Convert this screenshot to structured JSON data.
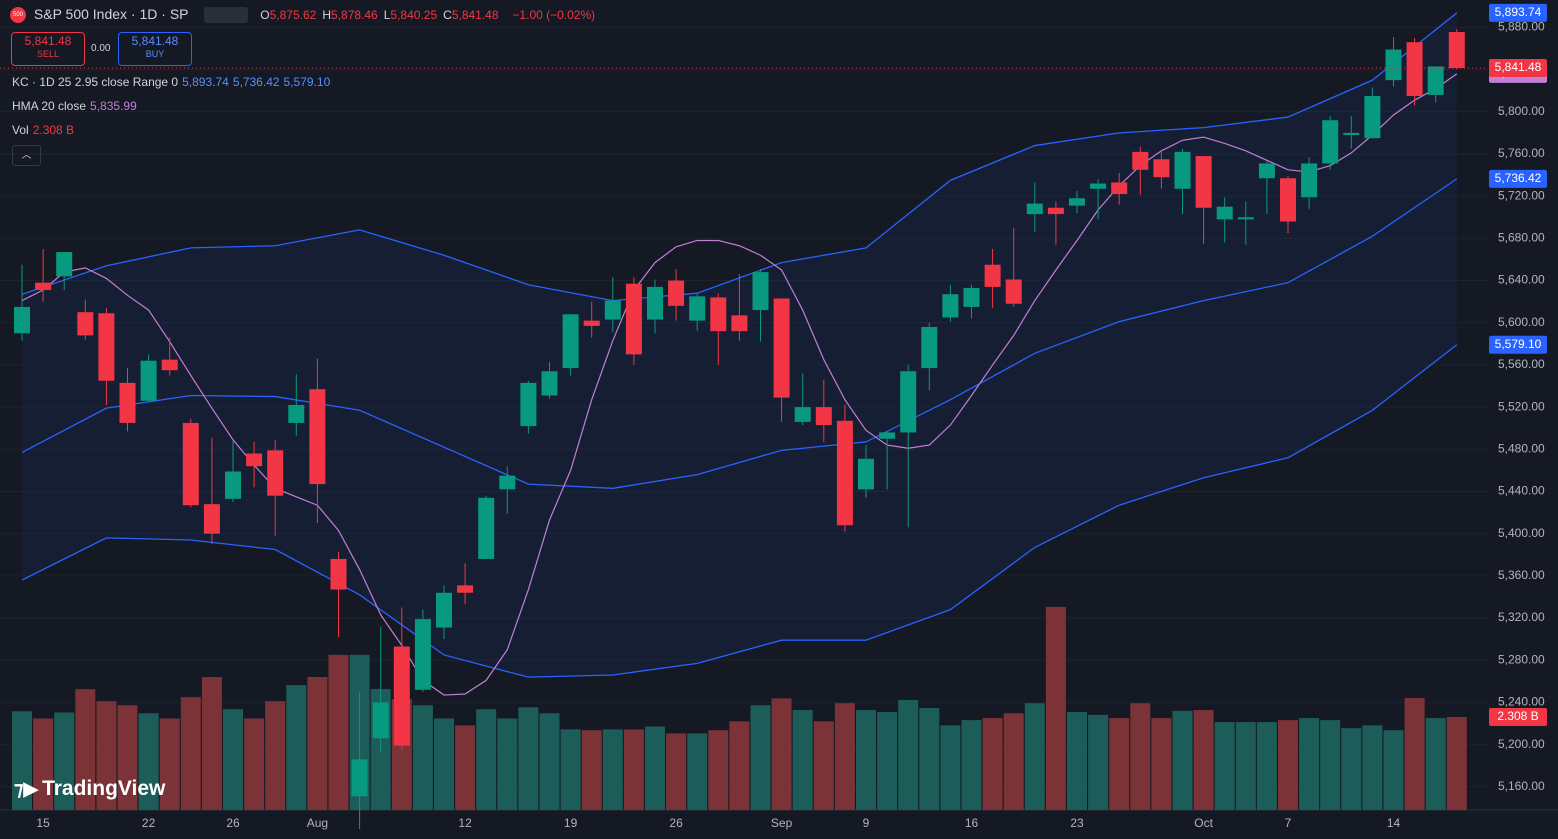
{
  "header": {
    "icon": "500",
    "symbol": "S&P 500 Index · 1D · SP",
    "ohlc": [
      {
        "k": "O",
        "v": "5,875.62"
      },
      {
        "k": "H",
        "v": "5,878.46"
      },
      {
        "k": "L",
        "v": "5,840.25"
      },
      {
        "k": "C",
        "v": "5,841.48"
      }
    ],
    "change": "−1.00 (−0.02%)"
  },
  "trade": {
    "sell_price": "5,841.48",
    "sell": "SELL",
    "spread": "0.00",
    "buy_price": "5,841.48",
    "buy": "BUY"
  },
  "legend": {
    "kc": "KC · 1D 25 2.95 close Range 0",
    "hma": "HMA 20 close",
    "vol": "Vol"
  },
  "logo": "TradingView",
  "chart_data": {
    "type": "candlestick",
    "up_color": "#089981",
    "down_color": "#f23645",
    "last_close_label": "5,841.48",
    "categories": [
      null,
      "15",
      null,
      null,
      null,
      null,
      "22",
      null,
      null,
      null,
      "26",
      null,
      null,
      null,
      "Aug",
      null,
      null,
      null,
      null,
      null,
      null,
      "12",
      null,
      null,
      null,
      null,
      "19",
      null,
      null,
      null,
      null,
      "26",
      null,
      null,
      null,
      null,
      "Sep",
      null,
      null,
      null,
      "9",
      null,
      null,
      null,
      null,
      "16",
      null,
      null,
      null,
      null,
      "23",
      null,
      null,
      null,
      null,
      null,
      "Oct",
      null,
      null,
      null,
      "7",
      null,
      null,
      null,
      null,
      "14",
      null,
      null,
      null
    ],
    "open": [
      5590,
      5638,
      5644,
      5610,
      5609,
      5543,
      5526,
      5565,
      5505,
      5428,
      5433,
      5476,
      5479,
      5505,
      5537,
      5376,
      5151,
      5206,
      5293,
      5252,
      5311,
      5351,
      5376,
      5442,
      5502,
      5531,
      5557,
      5602,
      5603,
      5637,
      5603,
      5640,
      5602,
      5624,
      5607,
      5612,
      5623,
      5506,
      5520,
      5507,
      5442,
      5490,
      5496,
      5557,
      5605,
      5615,
      5655,
      5641,
      5703,
      5709,
      5711,
      5727,
      5733,
      5762,
      5755,
      5727,
      5758,
      5698,
      5698,
      5737,
      5737,
      5719,
      5751,
      5778,
      5775,
      5830,
      5866,
      5816,
      5875.62
    ],
    "high": [
      5655,
      5670,
      5667,
      5622,
      5614,
      5557,
      5570,
      5586,
      5509,
      5491,
      5488,
      5487,
      5489,
      5551,
      5566,
      5383,
      5250,
      5312,
      5330,
      5328,
      5351,
      5372,
      5436,
      5464,
      5545,
      5563,
      5608,
      5620,
      5643,
      5643,
      5641,
      5651,
      5628,
      5628,
      5646,
      5651,
      5623,
      5552,
      5546,
      5522,
      5484,
      5497,
      5560,
      5600,
      5636,
      5636,
      5670,
      5690,
      5733,
      5715,
      5725,
      5736,
      5742,
      5767,
      5763,
      5765,
      5758,
      5719,
      5715,
      5753,
      5739,
      5757,
      5796,
      5796,
      5823,
      5871,
      5870,
      5843,
      5878.46
    ],
    "low": [
      5583,
      5620,
      5631,
      5584,
      5522,
      5497,
      5525,
      5550,
      5425,
      5390,
      5430,
      5444,
      5398,
      5493,
      5410,
      5302,
      5120,
      5193,
      5195,
      5250,
      5300,
      5333,
      5376,
      5419,
      5495,
      5528,
      5550,
      5586,
      5591,
      5560,
      5590,
      5602,
      5592,
      5560,
      5583,
      5582,
      5506,
      5503,
      5487,
      5402,
      5434,
      5442,
      5406,
      5536,
      5601,
      5604,
      5614,
      5615,
      5686,
      5674,
      5704,
      5698,
      5712,
      5721,
      5727,
      5703,
      5675,
      5676,
      5674,
      5703,
      5685,
      5708,
      5745,
      5765,
      5775,
      5824,
      5806,
      5809,
      5840.25
    ],
    "close": [
      5615,
      5631,
      5667,
      5588,
      5545,
      5505,
      5564,
      5555,
      5427,
      5400,
      5459,
      5464,
      5436,
      5522,
      5447,
      5347,
      5186,
      5240,
      5199,
      5319,
      5344,
      5344,
      5434,
      5455,
      5543,
      5554,
      5608,
      5597,
      5621,
      5570,
      5634,
      5616,
      5625,
      5592,
      5592,
      5648,
      5529,
      5520,
      5503,
      5408,
      5471,
      5496,
      5554,
      5596,
      5627,
      5633,
      5634,
      5618,
      5713,
      5703,
      5718,
      5732,
      5722,
      5745,
      5738,
      5762,
      5709,
      5710,
      5700,
      5751,
      5696,
      5751,
      5792,
      5780,
      5815,
      5859,
      5815,
      5843,
      5841.48
    ],
    "volume": {
      "up_color": "#1d5d59",
      "down_color": "#7b3337",
      "last_label": "2.308 B",
      "values": [
        2.45,
        2.27,
        2.42,
        3.0,
        2.7,
        2.6,
        2.4,
        2.27,
        2.8,
        3.3,
        2.5,
        2.27,
        2.7,
        3.1,
        3.3,
        3.85,
        3.85,
        3.0,
        2.75,
        2.6,
        2.27,
        2.1,
        2.5,
        2.27,
        2.55,
        2.4,
        2.0,
        1.98,
        2.0,
        2.0,
        2.07,
        1.9,
        1.9,
        1.98,
        2.2,
        2.6,
        2.77,
        2.48,
        2.2,
        2.65,
        2.48,
        2.43,
        2.73,
        2.53,
        2.1,
        2.23,
        2.28,
        2.4,
        2.65,
        5.04,
        2.43,
        2.36,
        2.28,
        2.65,
        2.28,
        2.46,
        2.48,
        2.18,
        2.18,
        2.18,
        2.23,
        2.28,
        2.23,
        2.03,
        2.1,
        1.98,
        2.78,
        2.28,
        2.308
      ]
    },
    "overlays": [
      {
        "color": "#2962ff",
        "last_label": "5,893.74",
        "x": [
          0,
          4,
          8,
          12,
          16,
          20,
          24,
          28,
          32,
          36,
          40,
          44,
          48,
          52,
          56,
          60,
          64,
          68
        ],
        "values": [
          5627,
          5654,
          5671,
          5673,
          5688,
          5664,
          5636,
          5621,
          5628,
          5657,
          5671,
          5735,
          5768,
          5780,
          5785,
          5795,
          5830,
          5893.74
        ]
      },
      {
        "color": "#2962ff",
        "last_label": "5,736.42",
        "x": [
          0,
          4,
          8,
          12,
          16,
          20,
          24,
          28,
          32,
          36,
          40,
          44,
          48,
          52,
          56,
          60,
          64,
          68
        ],
        "values": [
          5477,
          5519,
          5531,
          5530,
          5517,
          5482,
          5447,
          5443,
          5456,
          5479,
          5487,
          5527,
          5571,
          5601,
          5621,
          5638,
          5682,
          5736.42
        ]
      },
      {
        "color": "#2962ff",
        "last_label": "5,579.10",
        "x": [
          0,
          4,
          8,
          12,
          16,
          20,
          24,
          28,
          32,
          36,
          40,
          44,
          48,
          52,
          56,
          60,
          64,
          68
        ],
        "values": [
          5356,
          5396,
          5394,
          5385,
          5342,
          5285,
          5264,
          5266,
          5277,
          5299,
          5299,
          5328,
          5387,
          5427,
          5453,
          5472,
          5517,
          5579.1
        ]
      },
      {
        "color": "#c27fd6",
        "last_label": "5,835.99",
        "x": [
          0,
          1,
          2,
          3,
          4,
          5,
          6,
          7,
          8,
          9,
          10,
          11,
          12,
          13,
          14,
          15,
          16,
          17,
          18,
          19,
          20,
          21,
          22,
          23,
          24,
          25,
          26,
          27,
          28,
          29,
          30,
          31,
          32,
          33,
          34,
          35,
          36,
          37,
          38,
          39,
          40,
          41,
          42,
          43,
          44,
          45,
          46,
          47,
          48,
          49,
          50,
          51,
          52,
          53,
          54,
          55,
          56,
          57,
          58,
          59,
          60,
          61,
          62,
          63,
          64,
          65,
          66,
          67,
          68
        ],
        "values": [
          5621,
          5631,
          5648,
          5652,
          5642,
          5626,
          5612,
          5582,
          5550,
          5519,
          5489,
          5465,
          5443,
          5435,
          5427,
          5403,
          5366,
          5323,
          5294,
          5261,
          5247,
          5248,
          5261,
          5290,
          5347,
          5413,
          5460,
          5527,
          5583,
          5631,
          5657,
          5672,
          5678,
          5678,
          5673,
          5664,
          5650,
          5612,
          5565,
          5527,
          5498,
          5484,
          5481,
          5484,
          5503,
          5531,
          5560,
          5588,
          5621,
          5650,
          5678,
          5707,
          5730,
          5749,
          5763,
          5773,
          5776,
          5770,
          5763,
          5754,
          5745,
          5743,
          5749,
          5761,
          5778,
          5797,
          5811,
          5822,
          5835.99
        ]
      }
    ],
    "ylim": [
      5138,
      5906
    ],
    "yticks": [
      {
        "value": 5880,
        "label": "5,880.00"
      },
      {
        "value": 5840,
        "label": "5,840.00"
      },
      {
        "value": 5800,
        "label": "5,800.00"
      },
      {
        "value": 5760,
        "label": "5,760.00"
      },
      {
        "value": 5720,
        "label": "5,720.00"
      },
      {
        "value": 5680,
        "label": "5,680.00"
      },
      {
        "value": 5640,
        "label": "5,640.00"
      },
      {
        "value": 5600,
        "label": "5,600.00"
      },
      {
        "value": 5560,
        "label": "5,560.00"
      },
      {
        "value": 5520,
        "label": "5,520.00"
      },
      {
        "value": 5480,
        "label": "5,480.00"
      },
      {
        "value": 5440,
        "label": "5,440.00"
      },
      {
        "value": 5400,
        "label": "5,400.00"
      },
      {
        "value": 5360,
        "label": "5,360.00"
      },
      {
        "value": 5320,
        "label": "5,320.00"
      },
      {
        "value": 5280,
        "label": "5,280.00"
      },
      {
        "value": 5240,
        "label": "5,240.00"
      },
      {
        "value": 5200,
        "label": "5,200.00"
      },
      {
        "value": 5160,
        "label": "5,160.00"
      }
    ]
  }
}
